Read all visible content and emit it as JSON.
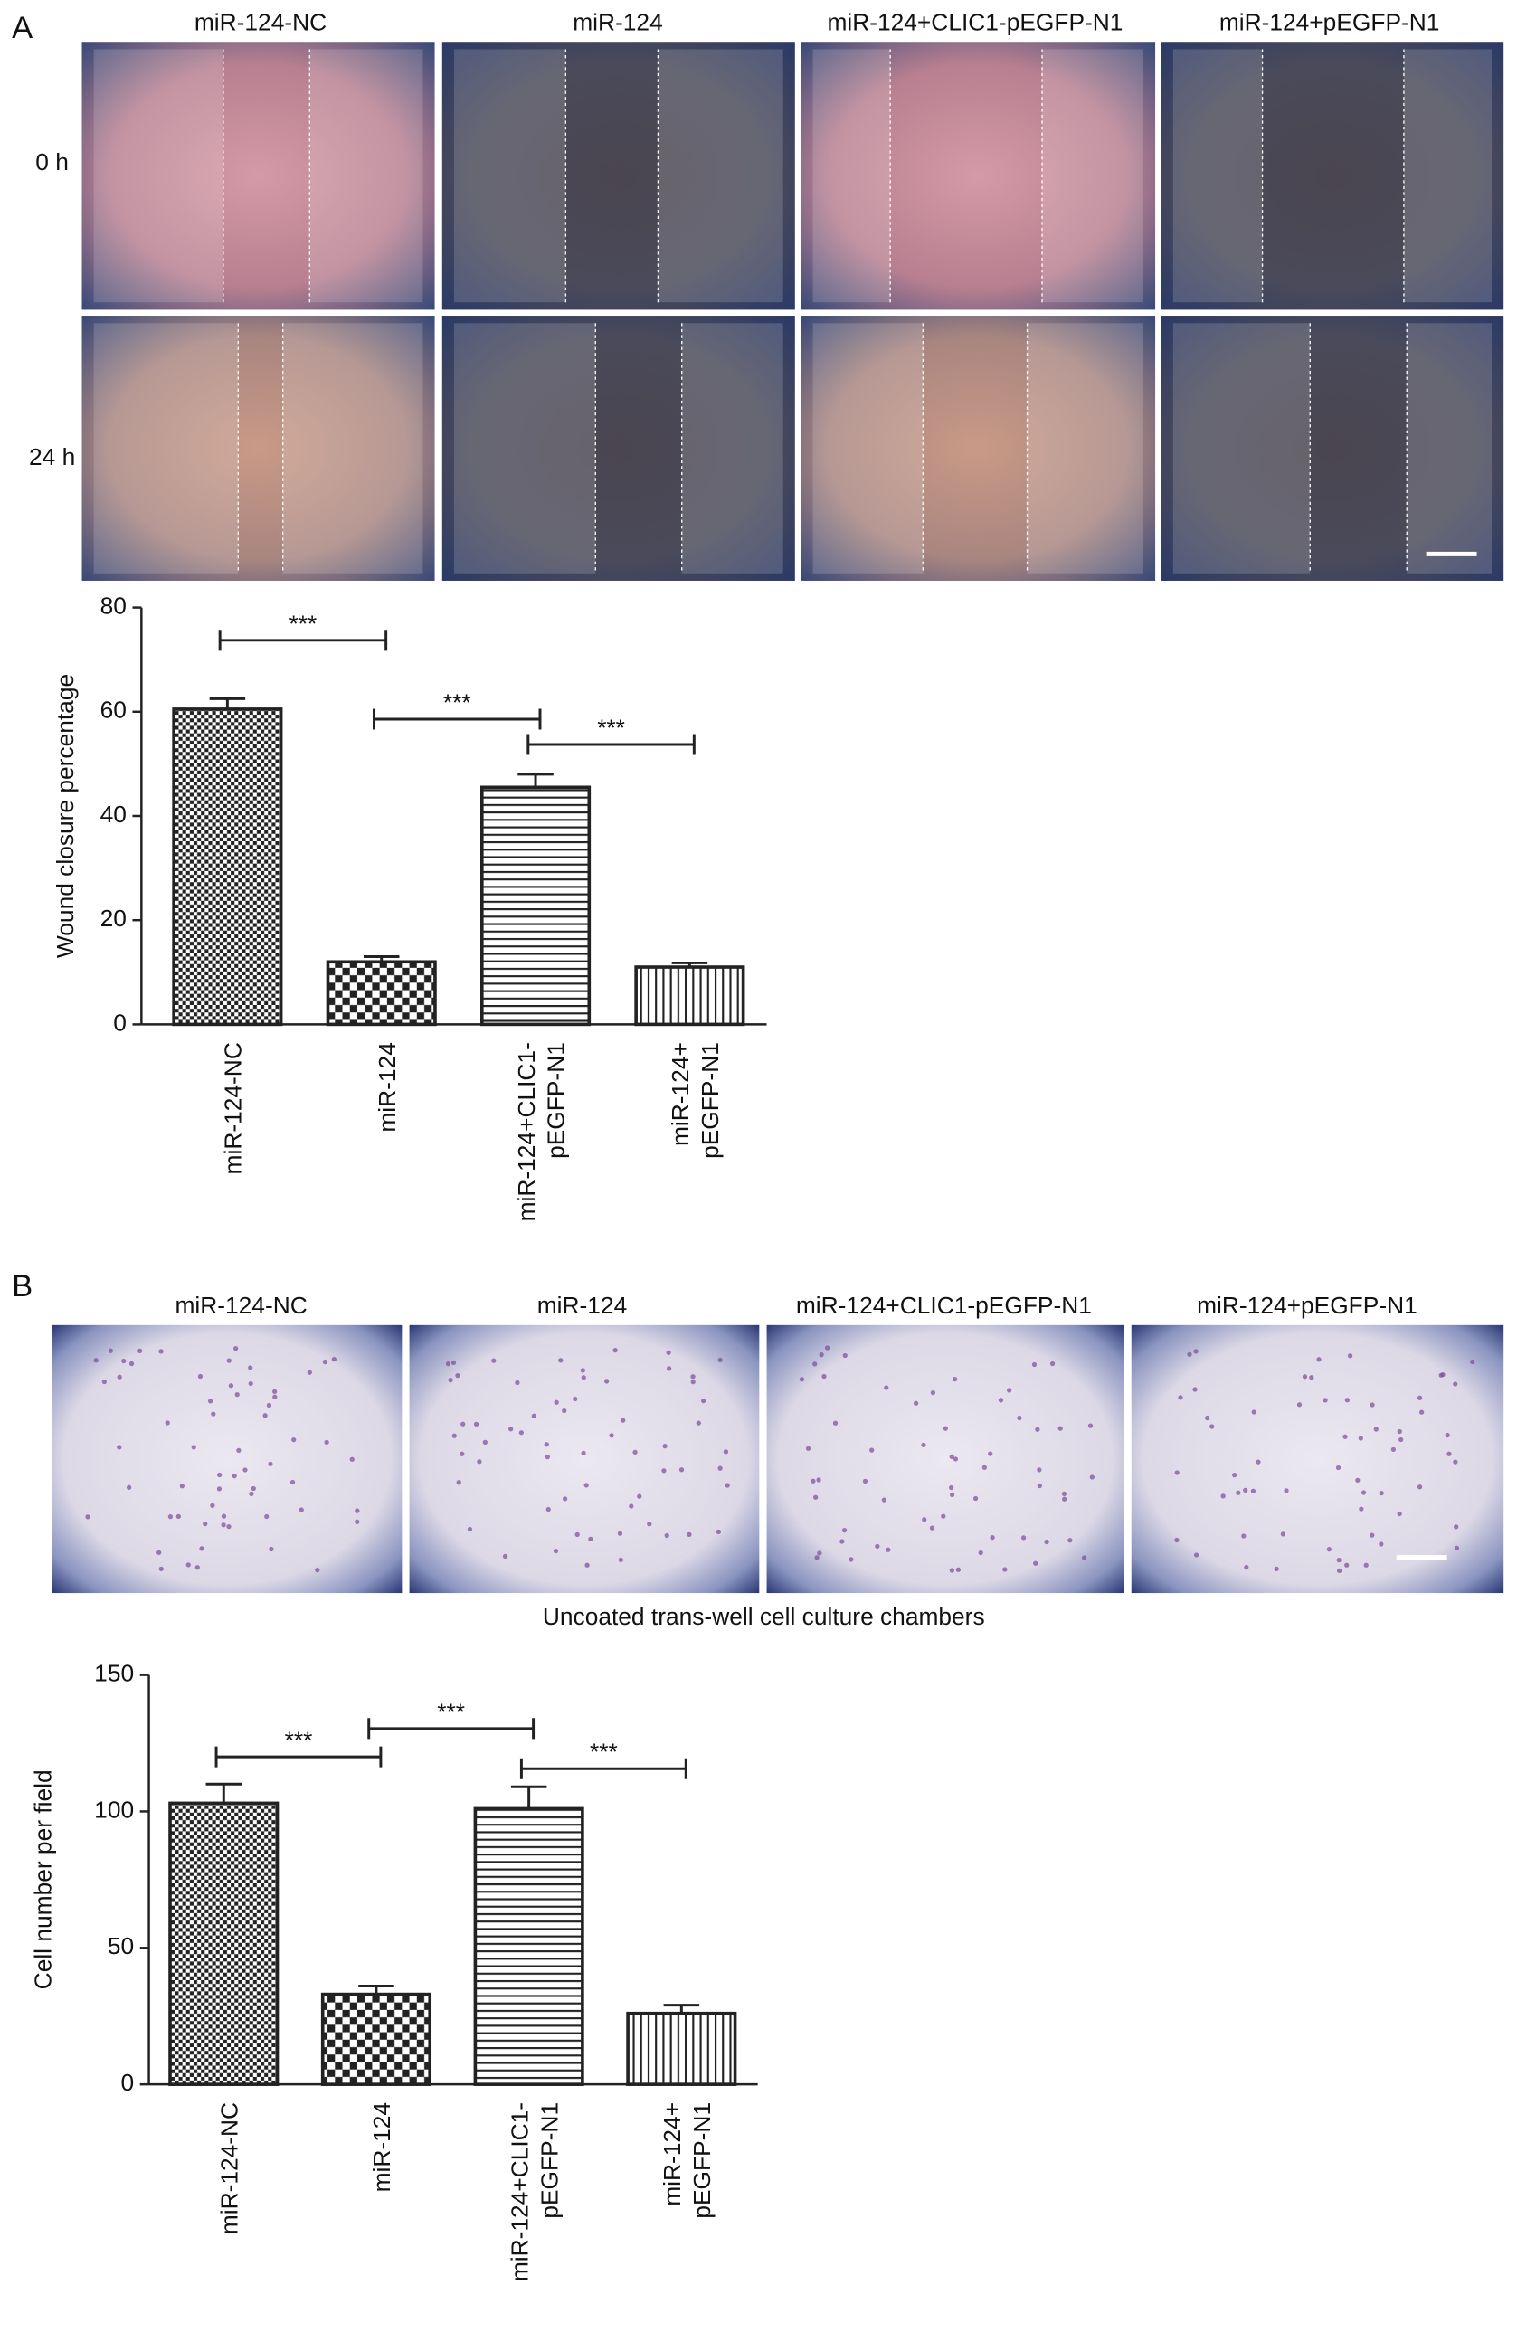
{
  "figure": {
    "panel_a": "A",
    "panel_b": "B",
    "a_columns": [
      "miR-124-NC",
      "miR-124",
      "miR-124+CLIC1-pEGFP-N1",
      "miR-124+pEGFP-N1"
    ],
    "a_rows": [
      "0 h",
      "24 h"
    ],
    "b_columns": [
      "miR-124-NC",
      "miR-124",
      "miR-124+CLIC1-pEGFP-N1",
      "miR-124+pEGFP-N1"
    ],
    "b_caption": "Uncoated trans-well cell culture chambers"
  },
  "chart_data": [
    {
      "type": "bar",
      "ylabel": "Wound closure percentage",
      "categories": [
        [
          "miR-124-NC"
        ],
        [
          "miR-124"
        ],
        [
          "miR-124+CLIC1-",
          "pEGFP-N1"
        ],
        [
          "miR-124+",
          "pEGFP-N1"
        ]
      ],
      "values": [
        60.5,
        12,
        45.5,
        11
      ],
      "errors": [
        2,
        1,
        2.5,
        0.8
      ],
      "bar_patterns": [
        "checker-fine",
        "checker-coarse",
        "horizontal",
        "vertical"
      ],
      "color": "#222222",
      "ylim": [
        0,
        80
      ],
      "yticks": [
        0,
        20,
        40,
        60,
        80
      ],
      "annotations": [
        "***",
        "***",
        "***"
      ]
    },
    {
      "type": "bar",
      "ylabel": "Cell number per field",
      "categories": [
        [
          "miR-124-NC"
        ],
        [
          "miR-124"
        ],
        [
          "miR-124+CLIC1-",
          "pEGFP-N1"
        ],
        [
          "miR-124+",
          "pEGFP-N1"
        ]
      ],
      "values": [
        103,
        33,
        101,
        26
      ],
      "errors": [
        7,
        3,
        8,
        3
      ],
      "bar_patterns": [
        "checker-fine",
        "checker-coarse",
        "horizontal",
        "vertical"
      ],
      "color": "#222222",
      "ylim": [
        0,
        150
      ],
      "yticks": [
        0,
        50,
        100,
        150
      ],
      "annotations": [
        "***",
        "***",
        "***"
      ]
    }
  ]
}
